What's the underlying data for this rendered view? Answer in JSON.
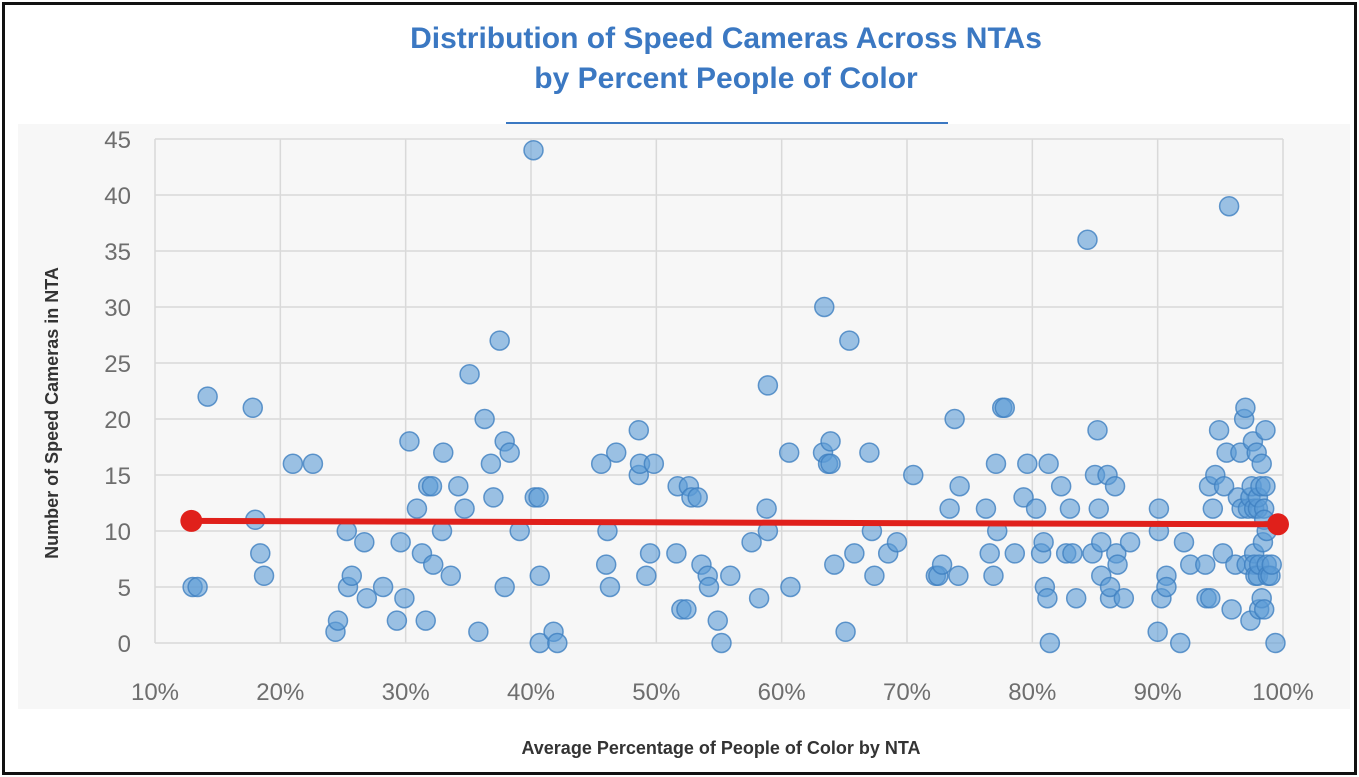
{
  "chart_data": {
    "type": "scatter",
    "title_line1": "Distribution of Speed Cameras Across NTAs",
    "title_line2": "by Percent People of Color",
    "xlabel": "Average Percentage of People of Color by NTA",
    "ylabel": "Number of Speed Cameras in NTA",
    "xlim": [
      10,
      100
    ],
    "ylim": [
      0,
      45
    ],
    "x_ticks": [
      10,
      20,
      30,
      40,
      50,
      60,
      70,
      80,
      90,
      100
    ],
    "x_tick_labels": [
      "10%",
      "20%",
      "30%",
      "40%",
      "50%",
      "60%",
      "70%",
      "80%",
      "90%",
      "100%"
    ],
    "y_ticks": [
      0,
      5,
      10,
      15,
      20,
      25,
      30,
      35,
      40,
      45
    ],
    "y_tick_labels": [
      "0",
      "5",
      "10",
      "15",
      "20",
      "25",
      "30",
      "35",
      "40",
      "45"
    ],
    "grid": true,
    "colors": {
      "points": "#5b9bd5",
      "trend": "#e0201b",
      "title": "#3b78c2"
    },
    "series": [
      {
        "name": "NTA",
        "points": [
          [
            13.0,
            5
          ],
          [
            13.4,
            5
          ],
          [
            14.2,
            22
          ],
          [
            17.8,
            21
          ],
          [
            18.0,
            11
          ],
          [
            18.4,
            8
          ],
          [
            18.7,
            6
          ],
          [
            21.0,
            16
          ],
          [
            22.6,
            16
          ],
          [
            24.4,
            1
          ],
          [
            24.6,
            2
          ],
          [
            25.3,
            10
          ],
          [
            25.4,
            5
          ],
          [
            25.7,
            6
          ],
          [
            26.7,
            9
          ],
          [
            26.9,
            4
          ],
          [
            28.2,
            5
          ],
          [
            29.3,
            2
          ],
          [
            29.6,
            9
          ],
          [
            29.9,
            4
          ],
          [
            30.3,
            18
          ],
          [
            30.9,
            12
          ],
          [
            31.3,
            8
          ],
          [
            31.6,
            2
          ],
          [
            31.8,
            14
          ],
          [
            32.1,
            14
          ],
          [
            32.2,
            7
          ],
          [
            32.9,
            10
          ],
          [
            33.0,
            17
          ],
          [
            33.6,
            6
          ],
          [
            34.2,
            14
          ],
          [
            34.7,
            12
          ],
          [
            35.1,
            24
          ],
          [
            35.8,
            1
          ],
          [
            36.3,
            20
          ],
          [
            36.8,
            16
          ],
          [
            37.0,
            13
          ],
          [
            37.5,
            27
          ],
          [
            37.9,
            18
          ],
          [
            37.9,
            5
          ],
          [
            38.3,
            17
          ],
          [
            39.1,
            10
          ],
          [
            40.2,
            44
          ],
          [
            40.3,
            13
          ],
          [
            40.6,
            13
          ],
          [
            40.7,
            6
          ],
          [
            40.7,
            0
          ],
          [
            41.8,
            1
          ],
          [
            42.1,
            0
          ],
          [
            45.6,
            16
          ],
          [
            46.0,
            7
          ],
          [
            46.1,
            10
          ],
          [
            46.3,
            5
          ],
          [
            46.8,
            17
          ],
          [
            48.6,
            19
          ],
          [
            48.6,
            15
          ],
          [
            48.7,
            16
          ],
          [
            49.2,
            6
          ],
          [
            49.5,
            8
          ],
          [
            49.8,
            16
          ],
          [
            51.6,
            8
          ],
          [
            51.7,
            14
          ],
          [
            52.0,
            3
          ],
          [
            52.4,
            3
          ],
          [
            52.6,
            14
          ],
          [
            52.8,
            13
          ],
          [
            53.3,
            13
          ],
          [
            53.6,
            7
          ],
          [
            54.1,
            6
          ],
          [
            54.2,
            5
          ],
          [
            54.9,
            2
          ],
          [
            55.2,
            0
          ],
          [
            55.9,
            6
          ],
          [
            57.6,
            9
          ],
          [
            58.2,
            4
          ],
          [
            58.8,
            12
          ],
          [
            58.9,
            23
          ],
          [
            58.9,
            10
          ],
          [
            60.6,
            17
          ],
          [
            60.7,
            5
          ],
          [
            63.3,
            17
          ],
          [
            63.4,
            30
          ],
          [
            63.7,
            16
          ],
          [
            63.9,
            18
          ],
          [
            63.9,
            16
          ],
          [
            64.2,
            7
          ],
          [
            65.1,
            1
          ],
          [
            65.4,
            27
          ],
          [
            65.8,
            8
          ],
          [
            67.0,
            17
          ],
          [
            67.2,
            10
          ],
          [
            67.4,
            6
          ],
          [
            68.5,
            8
          ],
          [
            69.2,
            9
          ],
          [
            70.5,
            15
          ],
          [
            72.3,
            6
          ],
          [
            72.5,
            6
          ],
          [
            72.8,
            7
          ],
          [
            73.4,
            12
          ],
          [
            73.8,
            20
          ],
          [
            74.1,
            6
          ],
          [
            74.2,
            14
          ],
          [
            76.3,
            12
          ],
          [
            76.6,
            8
          ],
          [
            76.9,
            6
          ],
          [
            77.1,
            16
          ],
          [
            77.2,
            10
          ],
          [
            77.6,
            21
          ],
          [
            77.8,
            21
          ],
          [
            78.6,
            8
          ],
          [
            79.3,
            13
          ],
          [
            79.6,
            16
          ],
          [
            80.3,
            12
          ],
          [
            80.7,
            8
          ],
          [
            80.9,
            9
          ],
          [
            81.0,
            5
          ],
          [
            81.3,
            16
          ],
          [
            81.2,
            4
          ],
          [
            81.4,
            0
          ],
          [
            82.3,
            14
          ],
          [
            82.7,
            8
          ],
          [
            83.0,
            12
          ],
          [
            83.2,
            8
          ],
          [
            83.5,
            4
          ],
          [
            84.4,
            36
          ],
          [
            84.8,
            8
          ],
          [
            85.0,
            15
          ],
          [
            85.2,
            19
          ],
          [
            85.3,
            12
          ],
          [
            85.5,
            9
          ],
          [
            85.5,
            6
          ],
          [
            86.0,
            15
          ],
          [
            86.2,
            4
          ],
          [
            86.2,
            5
          ],
          [
            86.6,
            14
          ],
          [
            86.7,
            8
          ],
          [
            86.8,
            7
          ],
          [
            87.3,
            4
          ],
          [
            87.8,
            9
          ],
          [
            90.0,
            1
          ],
          [
            90.1,
            12
          ],
          [
            90.1,
            10
          ],
          [
            90.3,
            4
          ],
          [
            90.7,
            6
          ],
          [
            90.7,
            5
          ],
          [
            91.8,
            0
          ],
          [
            92.1,
            9
          ],
          [
            92.6,
            7
          ],
          [
            93.8,
            7
          ],
          [
            93.9,
            4
          ],
          [
            94.1,
            14
          ],
          [
            94.2,
            4
          ],
          [
            94.4,
            12
          ],
          [
            94.6,
            15
          ],
          [
            94.9,
            19
          ],
          [
            95.2,
            8
          ],
          [
            95.3,
            14
          ],
          [
            95.5,
            17
          ],
          [
            95.7,
            39
          ],
          [
            95.9,
            3
          ],
          [
            96.2,
            7
          ],
          [
            96.4,
            13
          ],
          [
            96.6,
            17
          ],
          [
            96.7,
            12
          ],
          [
            96.9,
            20
          ],
          [
            97.0,
            21
          ],
          [
            97.1,
            7
          ],
          [
            97.2,
            12
          ],
          [
            97.4,
            13
          ],
          [
            97.4,
            2
          ],
          [
            97.5,
            14
          ],
          [
            97.6,
            18
          ],
          [
            97.7,
            8
          ],
          [
            97.7,
            12
          ],
          [
            97.7,
            7
          ],
          [
            97.8,
            6
          ],
          [
            97.9,
            17
          ],
          [
            98.0,
            12
          ],
          [
            98.0,
            13
          ],
          [
            98.0,
            6
          ],
          [
            98.1,
            7
          ],
          [
            98.1,
            3
          ],
          [
            98.2,
            14
          ],
          [
            98.3,
            16
          ],
          [
            98.3,
            4
          ],
          [
            98.4,
            9
          ],
          [
            98.5,
            12
          ],
          [
            98.5,
            11
          ],
          [
            98.5,
            3
          ],
          [
            98.6,
            19
          ],
          [
            98.6,
            14
          ],
          [
            98.7,
            10
          ],
          [
            98.7,
            7
          ],
          [
            98.8,
            6
          ],
          [
            99.0,
            6
          ],
          [
            99.1,
            7
          ],
          [
            99.4,
            0
          ]
        ]
      }
    ],
    "trend": {
      "name": "Linear trend",
      "from": [
        12.9,
        10.9
      ],
      "to": [
        99.6,
        10.6
      ]
    }
  }
}
